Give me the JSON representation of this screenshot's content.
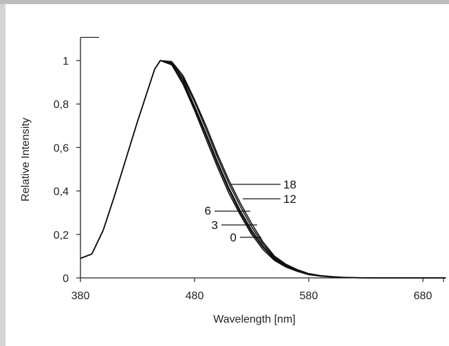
{
  "chart_data": {
    "type": "line",
    "xlabel": "Wavelength [nm]",
    "ylabel": "Relative Intensity",
    "xlim": [
      380,
      700
    ],
    "ylim": [
      0,
      1.1
    ],
    "x_ticks": [
      380,
      480,
      580,
      680
    ],
    "y_ticks": [
      0,
      0.2,
      0.4,
      0.6,
      0.8,
      1
    ],
    "x_tick_labels": [
      "380",
      "480",
      "580",
      "680"
    ],
    "y_tick_labels": [
      "0",
      "0,2",
      "0,4",
      "0,6",
      "0,8",
      "1"
    ],
    "grid": false,
    "series": [
      {
        "name": "0",
        "x": [
          380,
          390,
          400,
          410,
          420,
          430,
          440,
          445,
          450,
          460,
          470,
          480,
          490,
          500,
          510,
          520,
          530,
          540,
          550,
          560,
          570,
          580,
          590,
          600,
          610,
          620,
          640,
          660,
          680,
          700
        ],
        "y": [
          0.09,
          0.11,
          0.22,
          0.38,
          0.55,
          0.72,
          0.88,
          0.96,
          1.0,
          0.98,
          0.89,
          0.77,
          0.64,
          0.51,
          0.39,
          0.29,
          0.2,
          0.13,
          0.08,
          0.05,
          0.03,
          0.015,
          0.008,
          0.004,
          0.002,
          0.001,
          0.0,
          0.0,
          0.0,
          0.0
        ]
      },
      {
        "name": "3",
        "x": [
          380,
          390,
          400,
          410,
          420,
          430,
          440,
          445,
          450,
          460,
          470,
          480,
          490,
          500,
          510,
          520,
          530,
          540,
          550,
          560,
          570,
          580,
          590,
          600,
          610,
          620,
          640,
          660,
          680,
          700
        ],
        "y": [
          0.09,
          0.11,
          0.22,
          0.38,
          0.55,
          0.72,
          0.88,
          0.96,
          1.0,
          0.98,
          0.9,
          0.78,
          0.655,
          0.525,
          0.405,
          0.3,
          0.21,
          0.14,
          0.085,
          0.055,
          0.033,
          0.017,
          0.009,
          0.005,
          0.002,
          0.001,
          0.0,
          0.0,
          0.0,
          0.0
        ]
      },
      {
        "name": "6",
        "x": [
          380,
          390,
          400,
          410,
          420,
          430,
          440,
          445,
          450,
          460,
          470,
          480,
          490,
          500,
          510,
          520,
          530,
          540,
          550,
          560,
          570,
          580,
          590,
          600,
          610,
          620,
          640,
          660,
          680,
          700
        ],
        "y": [
          0.09,
          0.11,
          0.22,
          0.38,
          0.55,
          0.72,
          0.88,
          0.96,
          1.0,
          0.985,
          0.91,
          0.79,
          0.665,
          0.535,
          0.415,
          0.31,
          0.22,
          0.145,
          0.09,
          0.057,
          0.034,
          0.018,
          0.009,
          0.005,
          0.002,
          0.001,
          0.0,
          0.0,
          0.0,
          0.0
        ]
      },
      {
        "name": "12",
        "x": [
          380,
          390,
          400,
          410,
          420,
          430,
          440,
          445,
          450,
          460,
          470,
          480,
          490,
          500,
          510,
          520,
          530,
          540,
          550,
          560,
          570,
          580,
          590,
          600,
          610,
          620,
          640,
          660,
          680,
          700
        ],
        "y": [
          0.09,
          0.11,
          0.22,
          0.38,
          0.55,
          0.72,
          0.88,
          0.96,
          1.0,
          0.99,
          0.92,
          0.81,
          0.685,
          0.555,
          0.435,
          0.33,
          0.235,
          0.155,
          0.095,
          0.06,
          0.036,
          0.019,
          0.01,
          0.005,
          0.002,
          0.001,
          0.0,
          0.0,
          0.0,
          0.0
        ]
      },
      {
        "name": "18",
        "x": [
          380,
          390,
          400,
          410,
          420,
          430,
          440,
          445,
          450,
          460,
          470,
          480,
          490,
          500,
          510,
          520,
          530,
          540,
          550,
          560,
          570,
          580,
          590,
          600,
          610,
          620,
          640,
          660,
          680,
          700
        ],
        "y": [
          0.09,
          0.11,
          0.22,
          0.38,
          0.55,
          0.72,
          0.88,
          0.96,
          1.0,
          0.995,
          0.93,
          0.82,
          0.7,
          0.57,
          0.45,
          0.345,
          0.25,
          0.165,
          0.1,
          0.063,
          0.038,
          0.02,
          0.011,
          0.006,
          0.003,
          0.001,
          0.0,
          0.0,
          0.0,
          0.0
        ]
      }
    ],
    "annotations": [
      {
        "text": "18",
        "series": "18"
      },
      {
        "text": "12",
        "series": "12"
      },
      {
        "text": "6",
        "series": "6"
      },
      {
        "text": "3",
        "series": "3"
      },
      {
        "text": "0",
        "series": "0"
      }
    ],
    "line_color": "#111111"
  }
}
